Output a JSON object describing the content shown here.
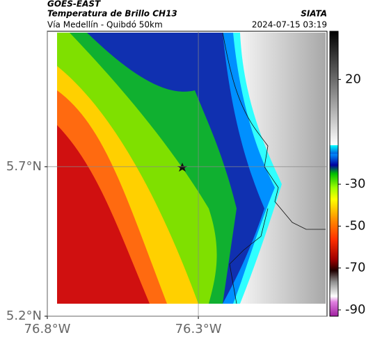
{
  "chart_data": {
    "type": "map",
    "title": "GOES-EAST",
    "subtitle": "Temperatura de Brillo CH13",
    "source": "SIATA",
    "caption": "Vía Medellín - Quibdó 50km",
    "timestamp": "2024-07-15 03:19",
    "xlim": [
      -76.8,
      -75.874
    ],
    "ylim": [
      5.2,
      6.153
    ],
    "xticks": [
      {
        "value": -76.8,
        "label": "76.8°W"
      },
      {
        "value": -76.3,
        "label": "76.3°W"
      }
    ],
    "yticks": [
      {
        "value": 5.7,
        "label": "5.7°N"
      },
      {
        "value": 5.2,
        "label": "5.2°N"
      }
    ],
    "grid": true,
    "colorbar": {
      "lim": [
        -93,
        43
      ],
      "ticks": [
        20,
        -30,
        -50,
        -70,
        -90
      ]
    }
  }
}
